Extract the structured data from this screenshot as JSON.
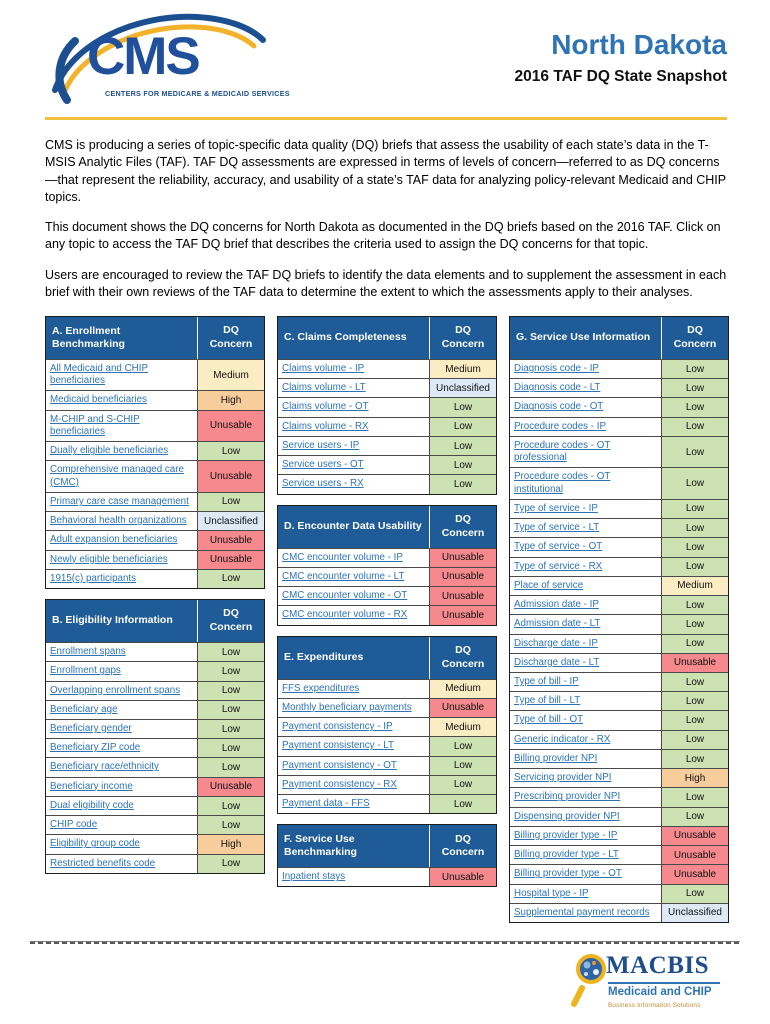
{
  "header": {
    "logo_text": "CMS",
    "logo_tagline": "CENTERS FOR MEDICARE & MEDICAID SERVICES",
    "state": "North Dakota",
    "subtitle": "2016 TAF DQ State Snapshot"
  },
  "intro": {
    "p1": "CMS is producing a series of topic-specific data quality (DQ) briefs that assess the usability of each state’s data in the T-MSIS Analytic Files (TAF). TAF DQ assessments are expressed in terms of levels of concern—referred to as DQ concerns—that represent the reliability, accuracy, and usability of a state’s TAF data for analyzing policy-relevant Medicaid and CHIP topics.",
    "p2": "This document shows the DQ concerns for North Dakota as documented in the DQ briefs based on the 2016 TAF. Click on any topic to access the TAF DQ brief that describes the criteria used to assign the DQ concerns for that topic.",
    "p3": "Users are encouraged to review the TAF DQ briefs to identify the data elements and to supplement the assessment in each brief with their own reviews of the TAF data to determine the extent to which the assessments apply to their analyses."
  },
  "dq_label": "DQ\nConcern",
  "concern_colors": {
    "Low": "#CCE2B3",
    "Medium": "#FBEDC3",
    "High": "#F8CD9C",
    "Unusable": "#F5898D",
    "Unclassified": "#DDEAF6"
  },
  "tables": [
    {
      "id": "A",
      "title": "A. Enrollment Benchmarking",
      "rows": [
        {
          "topic": "All Medicaid and CHIP beneficiaries",
          "concern": "Medium"
        },
        {
          "topic": "Medicaid beneficiaries",
          "concern": "High"
        },
        {
          "topic": "M-CHIP and S-CHIP beneficiaries",
          "concern": "Unusable"
        },
        {
          "topic": "Dually eligible beneficiaries",
          "concern": "Low"
        },
        {
          "topic": "Comprehensive managed care (CMC)",
          "concern": "Unusable"
        },
        {
          "topic": "Primary care case management",
          "concern": "Low"
        },
        {
          "topic": "Behavioral health organizations",
          "concern": "Unclassified"
        },
        {
          "topic": "Adult expansion beneficiaries",
          "concern": "Unusable"
        },
        {
          "topic": "Newly eligible beneficiaries",
          "concern": "Unusable"
        },
        {
          "topic": "1915(c) participants",
          "concern": "Low"
        }
      ]
    },
    {
      "id": "B",
      "title": "B. Eligibility Information",
      "rows": [
        {
          "topic": "Enrollment spans",
          "concern": "Low"
        },
        {
          "topic": "Enrollment gaps",
          "concern": "Low"
        },
        {
          "topic": "Overlapping enrollment spans",
          "concern": "Low"
        },
        {
          "topic": "Beneficiary age",
          "concern": "Low"
        },
        {
          "topic": "Beneficiary gender",
          "concern": "Low"
        },
        {
          "topic": "Beneficiary ZIP code",
          "concern": "Low"
        },
        {
          "topic": "Beneficiary race/ethnicity",
          "concern": "Low"
        },
        {
          "topic": "Beneficiary income",
          "concern": "Unusable"
        },
        {
          "topic": "Dual eligibility code",
          "concern": "Low"
        },
        {
          "topic": "CHIP code",
          "concern": "Low"
        },
        {
          "topic": "Eligibility group code",
          "concern": "High"
        },
        {
          "topic": "Restricted benefits code",
          "concern": "Low"
        }
      ]
    },
    {
      "id": "C",
      "title": "C. Claims Completeness",
      "rows": [
        {
          "topic": "Claims volume - IP",
          "concern": "Medium"
        },
        {
          "topic": "Claims volume - LT",
          "concern": "Unclassified"
        },
        {
          "topic": "Claims volume - OT",
          "concern": "Low"
        },
        {
          "topic": "Claims volume - RX",
          "concern": "Low"
        },
        {
          "topic": "Service users - IP",
          "concern": "Low"
        },
        {
          "topic": "Service users - OT",
          "concern": "Low"
        },
        {
          "topic": "Service users - RX",
          "concern": "Low"
        }
      ]
    },
    {
      "id": "D",
      "title": "D. Encounter Data Usability",
      "rows": [
        {
          "topic": "CMC encounter volume - IP",
          "concern": "Unusable"
        },
        {
          "topic": "CMC encounter volume - LT",
          "concern": "Unusable"
        },
        {
          "topic": "CMC encounter volume - OT",
          "concern": "Unusable"
        },
        {
          "topic": "CMC encounter volume - RX",
          "concern": "Unusable"
        }
      ]
    },
    {
      "id": "E",
      "title": "E. Expenditures",
      "rows": [
        {
          "topic": "FFS expenditures",
          "concern": "Medium"
        },
        {
          "topic": "Monthly beneficiary payments",
          "concern": "Unusable"
        },
        {
          "topic": "Payment consistency - IP",
          "concern": "Medium"
        },
        {
          "topic": "Payment consistency - LT",
          "concern": "Low"
        },
        {
          "topic": "Payment consistency - OT",
          "concern": "Low"
        },
        {
          "topic": "Payment consistency - RX",
          "concern": "Low"
        },
        {
          "topic": "Payment data - FFS",
          "concern": "Low"
        }
      ]
    },
    {
      "id": "F",
      "title": "F. Service Use Benchmarking",
      "rows": [
        {
          "topic": "Inpatient stays",
          "concern": "Unusable"
        }
      ]
    },
    {
      "id": "G",
      "title": "G. Service Use Information",
      "rows": [
        {
          "topic": "Diagnosis code - IP",
          "concern": "Low"
        },
        {
          "topic": "Diagnosis code - LT",
          "concern": "Low"
        },
        {
          "topic": "Diagnosis code - OT",
          "concern": "Low"
        },
        {
          "topic": "Procedure codes - IP",
          "concern": "Low"
        },
        {
          "topic": "Procedure codes - OT professional",
          "concern": "Low"
        },
        {
          "topic": "Procedure codes - OT institutional",
          "concern": "Low"
        },
        {
          "topic": "Type of service - IP",
          "concern": "Low"
        },
        {
          "topic": "Type of service - LT",
          "concern": "Low"
        },
        {
          "topic": "Type of service - OT",
          "concern": "Low"
        },
        {
          "topic": "Type of service - RX",
          "concern": "Low"
        },
        {
          "topic": "Place of service",
          "concern": "Medium"
        },
        {
          "topic": "Admission date - IP",
          "concern": "Low"
        },
        {
          "topic": "Admission date - LT",
          "concern": "Low"
        },
        {
          "topic": "Discharge date - IP",
          "concern": "Low"
        },
        {
          "topic": "Discharge date - LT",
          "concern": "Unusable"
        },
        {
          "topic": "Type of bill - IP",
          "concern": "Low"
        },
        {
          "topic": "Type of bill - LT",
          "concern": "Low"
        },
        {
          "topic": "Type of bill - OT",
          "concern": "Low"
        },
        {
          "topic": "Generic indicator - RX",
          "concern": "Low"
        },
        {
          "topic": "Billing provider NPI",
          "concern": "Low"
        },
        {
          "topic": "Servicing provider NPI",
          "concern": "High"
        },
        {
          "topic": "Prescribing provider NPI",
          "concern": "Low"
        },
        {
          "topic": "Dispensing provider NPI",
          "concern": "Low"
        },
        {
          "topic": "Billing provider type - IP",
          "concern": "Unusable"
        },
        {
          "topic": "Billing provider type - LT",
          "concern": "Unusable"
        },
        {
          "topic": "Billing provider type - OT",
          "concern": "Unusable"
        },
        {
          "topic": "Hospital type - IP",
          "concern": "Low"
        },
        {
          "topic": "Supplemental payment records",
          "concern": "Unclassified"
        }
      ]
    }
  ],
  "footer": {
    "macbis_word": "MACBIS",
    "macbis_line2": "Medicaid and CHIP",
    "macbis_line3": "Business Information Solutions"
  }
}
